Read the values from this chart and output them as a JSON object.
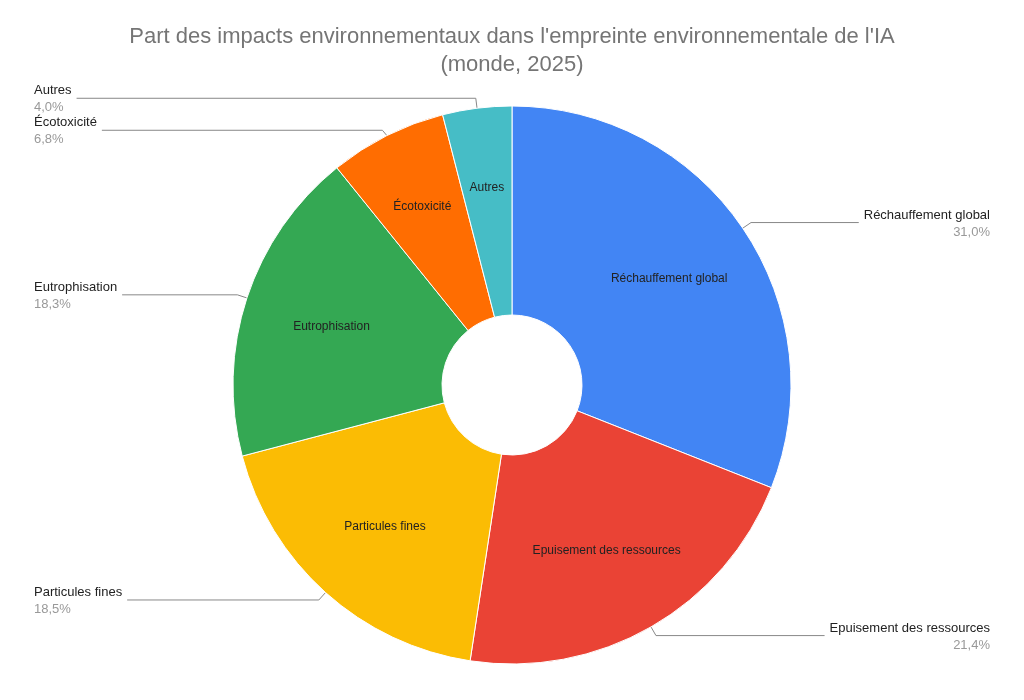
{
  "chart_data": {
    "type": "donut",
    "title": "Part des impacts environnementaux dans l'empreinte environnementale de l'IA\n(monde, 2025)",
    "categories": [
      "Réchauffement global",
      "Epuisement des ressources",
      "Particules fines",
      "Eutrophisation",
      "Écotoxicité",
      "Autres"
    ],
    "values": [
      31.0,
      21.4,
      18.5,
      18.3,
      6.8,
      4.0
    ],
    "value_labels": [
      "31,0%",
      "21,4%",
      "18,5%",
      "18,3%",
      "6,8%",
      "4,0%"
    ],
    "colors": [
      "#4285f4",
      "#ea4335",
      "#fbbc04",
      "#34a853",
      "#ff6d01",
      "#46bdc6"
    ],
    "legend": false
  }
}
